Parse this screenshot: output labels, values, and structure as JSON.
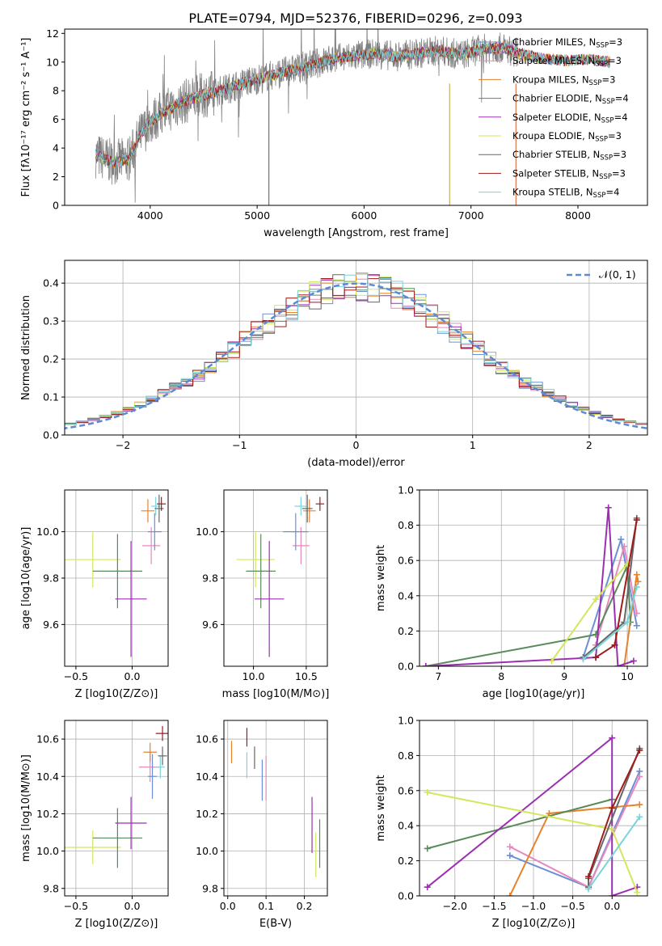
{
  "figure": {
    "title": "PLATE=0794, MJD=52376, FIBERID=0296, z=0.093"
  },
  "colors": {
    "Chabrier MILES": "#6b8fd6",
    "Salpeter MILES": "#e688bf",
    "Kroupa MILES": "#e6832a",
    "Chabrier ELODIE": "#5a8a5a",
    "Salpeter ELODIE": "#9a30b0",
    "Kroupa ELODIE": "#d2e85a",
    "Chabrier STELIB": "#666666",
    "Salpeter STELIB": "#a01a1a",
    "Kroupa STELIB": "#7ad4dc",
    "data": "#808080",
    "normal": "#5b8ad6"
  },
  "chart_data": [
    {
      "id": "spectrum",
      "type": "line",
      "xlabel": "wavelength [Angstrom, rest frame]",
      "ylabel": "Flux [fλ10⁻¹⁷ erg cm⁻² s⁻¹ A⁻¹]",
      "xlim": [
        3200,
        8650
      ],
      "ylim": [
        0,
        12.3
      ],
      "xticks": [
        4000,
        5000,
        6000,
        7000,
        8000
      ],
      "yticks": [
        0,
        2,
        4,
        6,
        8,
        10,
        12
      ],
      "continuum": {
        "x": [
          3500,
          3650,
          3800,
          3900,
          4000,
          4100,
          4300,
          4500,
          4700,
          4900,
          5100,
          5300,
          5500,
          5700,
          5900,
          6100,
          6300,
          6500,
          6700,
          6900,
          7100,
          7300,
          7500,
          7700,
          7900,
          8100,
          8300
        ],
        "y": [
          3.5,
          3.0,
          3.2,
          4.8,
          5.8,
          6.4,
          7.2,
          7.7,
          8.1,
          8.6,
          9.0,
          9.4,
          9.8,
          10.2,
          10.4,
          10.6,
          10.4,
          10.6,
          10.8,
          10.5,
          10.9,
          11.0,
          10.5,
          10.2,
          10.1,
          10.2,
          10.0
        ]
      },
      "noise_amplitude": 0.9,
      "legend_position": "upper right",
      "legend": [
        {
          "label": "Chabrier MILES, N",
          "sub": "SSP",
          "value": "=3"
        },
        {
          "label": "Salpeter MILES, N",
          "sub": "SSP",
          "value": "=3"
        },
        {
          "label": "Kroupa MILES, N",
          "sub": "SSP",
          "value": "=3"
        },
        {
          "label": "Chabrier ELODIE, N",
          "sub": "SSP",
          "value": "=4"
        },
        {
          "label": "Salpeter ELODIE, N",
          "sub": "SSP",
          "value": "=4"
        },
        {
          "label": "Kroupa ELODIE, N",
          "sub": "SSP",
          "value": "=3"
        },
        {
          "label": "Chabrier STELIB, N",
          "sub": "SSP",
          "value": "=3"
        },
        {
          "label": "Salpeter STELIB, N",
          "sub": "SSP",
          "value": "=3"
        },
        {
          "label": "Kroupa STELIB, N",
          "sub": "SSP",
          "value": "=4"
        }
      ]
    },
    {
      "id": "residuals",
      "type": "bar",
      "xlabel": "(data-model)/error",
      "ylabel": "Normed distribution",
      "xlim": [
        -2.5,
        2.5
      ],
      "ylim": [
        0,
        0.46
      ],
      "xticks": [
        -2,
        -1,
        0,
        1,
        2
      ],
      "yticks": [
        0.0,
        0.1,
        0.2,
        0.3,
        0.4
      ],
      "grid": true,
      "bin_width": 0.1,
      "legend": "𝒩(0, 1)",
      "legend_position": "upper right"
    },
    {
      "id": "z-age",
      "type": "scatter",
      "xlabel": "Z [log10(Z/Z⊙)]",
      "ylabel": "age  [log10(age/yr)]",
      "xlim": [
        -0.6,
        0.32
      ],
      "ylim": [
        9.42,
        10.18
      ],
      "xticks": [
        -0.5,
        0.0
      ],
      "yticks": [
        9.6,
        9.8,
        10.0
      ],
      "grid": true,
      "points": [
        {
          "model": "Kroupa ELODIE",
          "x": -0.35,
          "y": 9.88,
          "xerr": 0.25,
          "yerr": 0.12
        },
        {
          "model": "Chabrier ELODIE",
          "x": -0.13,
          "y": 9.83,
          "xerr": 0.22,
          "yerr": 0.16
        },
        {
          "model": "Salpeter ELODIE",
          "x": -0.01,
          "y": 9.71,
          "xerr": 0.14,
          "yerr": 0.25
        },
        {
          "model": "Salpeter MILES",
          "x": 0.17,
          "y": 9.94,
          "xerr": 0.08,
          "yerr": 0.08
        },
        {
          "model": "Chabrier MILES",
          "x": 0.2,
          "y": 10.0,
          "xerr": 0.06,
          "yerr": 0.08
        },
        {
          "model": "Kroupa MILES",
          "x": 0.14,
          "y": 10.09,
          "xerr": 0.06,
          "yerr": 0.05
        },
        {
          "model": "Kroupa STELIB",
          "x": 0.21,
          "y": 10.11,
          "xerr": 0.04,
          "yerr": 0.04
        },
        {
          "model": "Chabrier STELIB",
          "x": 0.24,
          "y": 10.1,
          "xerr": 0.04,
          "yerr": 0.06
        },
        {
          "model": "Salpeter STELIB",
          "x": 0.26,
          "y": 10.12,
          "xerr": 0.04,
          "yerr": 0.03
        }
      ]
    },
    {
      "id": "mass-age",
      "type": "scatter",
      "xlabel": "mass [log10(M/M⊙)]",
      "ylabel": "",
      "xlim": [
        9.72,
        10.7
      ],
      "ylim": [
        9.42,
        10.18
      ],
      "xticks": [
        10.0,
        10.5
      ],
      "yticks": [
        9.6,
        9.8,
        10.0
      ],
      "grid": true,
      "points": [
        {
          "model": "Kroupa ELODIE",
          "x": 10.02,
          "y": 9.88,
          "xerr": 0.18,
          "yerr": 0.12
        },
        {
          "model": "Chabrier ELODIE",
          "x": 10.07,
          "y": 9.83,
          "xerr": 0.14,
          "yerr": 0.16
        },
        {
          "model": "Salpeter ELODIE",
          "x": 10.15,
          "y": 9.71,
          "xerr": 0.14,
          "yerr": 0.25
        },
        {
          "model": "Salpeter MILES",
          "x": 10.45,
          "y": 9.94,
          "xerr": 0.08,
          "yerr": 0.08
        },
        {
          "model": "Chabrier MILES",
          "x": 10.4,
          "y": 10.0,
          "xerr": 0.12,
          "yerr": 0.08
        },
        {
          "model": "Kroupa MILES",
          "x": 10.53,
          "y": 10.09,
          "xerr": 0.06,
          "yerr": 0.05
        },
        {
          "model": "Kroupa STELIB",
          "x": 10.45,
          "y": 10.11,
          "xerr": 0.06,
          "yerr": 0.04
        },
        {
          "model": "Chabrier STELIB",
          "x": 10.51,
          "y": 10.1,
          "xerr": 0.05,
          "yerr": 0.06
        },
        {
          "model": "Salpeter STELIB",
          "x": 10.63,
          "y": 10.12,
          "xerr": 0.04,
          "yerr": 0.03
        }
      ]
    },
    {
      "id": "age-weight",
      "type": "line",
      "xlabel": "age  [log10(age/yr)]",
      "ylabel": "mass weight",
      "xlim": [
        6.7,
        10.32
      ],
      "ylim": [
        0,
        1.0
      ],
      "xticks": [
        7,
        8,
        9,
        10
      ],
      "yticks": [
        0.0,
        0.2,
        0.4,
        0.6,
        0.8,
        1.0
      ],
      "grid": true,
      "series": [
        {
          "model": "Chabrier MILES",
          "x": [
            9.3,
            9.9,
            10.15
          ],
          "y": [
            0.05,
            0.72,
            0.23
          ]
        },
        {
          "model": "Salpeter MILES",
          "x": [
            9.5,
            9.95,
            10.15
          ],
          "y": [
            0.12,
            0.68,
            0.3
          ]
        },
        {
          "model": "Kroupa MILES",
          "x": [
            9.95,
            10.15,
            10.17
          ],
          "y": [
            0.0,
            0.52,
            0.48
          ]
        },
        {
          "model": "Chabrier ELODIE",
          "x": [
            6.8,
            9.5,
            10.0,
            10.05
          ],
          "y": [
            0.0,
            0.18,
            0.57,
            0.25
          ]
        },
        {
          "model": "Salpeter ELODIE",
          "x": [
            6.8,
            9.5,
            9.7,
            9.85,
            10.1
          ],
          "y": [
            0.0,
            0.05,
            0.9,
            0.0,
            0.03
          ]
        },
        {
          "model": "Kroupa ELODIE",
          "x": [
            8.8,
            9.5,
            10.0
          ],
          "y": [
            0.03,
            0.38,
            0.58
          ]
        },
        {
          "model": "Chabrier STELIB",
          "x": [
            9.3,
            9.95,
            10.15
          ],
          "y": [
            0.05,
            0.25,
            0.84
          ]
        },
        {
          "model": "Salpeter STELIB",
          "x": [
            9.5,
            9.8,
            10.15
          ],
          "y": [
            0.05,
            0.12,
            0.83
          ]
        },
        {
          "model": "Kroupa STELIB",
          "x": [
            9.3,
            10.0,
            10.15
          ],
          "y": [
            0.04,
            0.25,
            0.45
          ]
        }
      ]
    },
    {
      "id": "z-mass",
      "type": "scatter",
      "xlabel": "Z [log10(Z/Z⊙)]",
      "ylabel": "mass [log10(M/M⊙)]",
      "xlim": [
        -0.6,
        0.32
      ],
      "ylim": [
        9.76,
        10.7
      ],
      "xticks": [
        -0.5,
        0.0
      ],
      "yticks": [
        9.8,
        10.0,
        10.2,
        10.4,
        10.6
      ],
      "grid": true,
      "points": [
        {
          "model": "Kroupa ELODIE",
          "x": -0.35,
          "y": 10.02,
          "xerr": 0.25,
          "yerr": 0.09
        },
        {
          "model": "Chabrier ELODIE",
          "x": -0.13,
          "y": 10.07,
          "xerr": 0.22,
          "yerr": 0.16
        },
        {
          "model": "Salpeter ELODIE",
          "x": -0.01,
          "y": 10.15,
          "xerr": 0.14,
          "yerr": 0.14
        },
        {
          "model": "Salpeter MILES",
          "x": 0.16,
          "y": 10.45,
          "xerr": 0.1,
          "yerr": 0.08
        },
        {
          "model": "Chabrier MILES",
          "x": 0.18,
          "y": 10.4,
          "xerr": 0.04,
          "yerr": 0.12
        },
        {
          "model": "Kroupa MILES",
          "x": 0.16,
          "y": 10.53,
          "xerr": 0.06,
          "yerr": 0.05
        },
        {
          "model": "Kroupa STELIB",
          "x": 0.25,
          "y": 10.45,
          "xerr": 0.04,
          "yerr": 0.06
        },
        {
          "model": "Chabrier STELIB",
          "x": 0.27,
          "y": 10.51,
          "xerr": 0.04,
          "yerr": 0.05
        },
        {
          "model": "Salpeter STELIB",
          "x": 0.27,
          "y": 10.63,
          "xerr": 0.06,
          "yerr": 0.04
        }
      ]
    },
    {
      "id": "ebv-mass",
      "type": "scatter",
      "xlabel": "E(B-V)",
      "ylabel": "",
      "xlim": [
        -0.01,
        0.26
      ],
      "ylim": [
        9.76,
        10.7
      ],
      "xticks": [
        0.0,
        0.1,
        0.2
      ],
      "yticks": [
        9.8,
        10.0,
        10.2,
        10.4,
        10.6
      ],
      "grid": true,
      "points": [
        {
          "model": "Kroupa MILES",
          "x": 0.01,
          "y": 10.53,
          "xerr": 0.0,
          "yerr": 0.06
        },
        {
          "model": "Salpeter STELIB",
          "x": 0.05,
          "y": 10.61,
          "xerr": 0.0,
          "yerr": 0.05
        },
        {
          "model": "Kroupa STELIB",
          "x": 0.05,
          "y": 10.46,
          "xerr": 0.0,
          "yerr": 0.07
        },
        {
          "model": "Chabrier STELIB",
          "x": 0.07,
          "y": 10.5,
          "xerr": 0.0,
          "yerr": 0.06
        },
        {
          "model": "Chabrier MILES",
          "x": 0.09,
          "y": 10.38,
          "xerr": 0.0,
          "yerr": 0.11
        },
        {
          "model": "Salpeter MILES",
          "x": 0.1,
          "y": 10.39,
          "xerr": 0.0,
          "yerr": 0.12
        },
        {
          "model": "Salpeter ELODIE",
          "x": 0.22,
          "y": 10.14,
          "xerr": 0.0,
          "yerr": 0.15
        },
        {
          "model": "Kroupa ELODIE",
          "x": 0.23,
          "y": 9.98,
          "xerr": 0.0,
          "yerr": 0.12
        },
        {
          "model": "Chabrier ELODIE",
          "x": 0.24,
          "y": 10.04,
          "xerr": 0.0,
          "yerr": 0.13
        }
      ]
    },
    {
      "id": "z-weight",
      "type": "line",
      "xlabel": "Z [log10(Z/Z⊙)]",
      "ylabel": "mass weight",
      "xlim": [
        -2.45,
        0.45
      ],
      "ylim": [
        0,
        1.0
      ],
      "xticks": [
        -2.0,
        -1.5,
        -1.0,
        -0.5,
        0.0
      ],
      "yticks": [
        0.0,
        0.2,
        0.4,
        0.6,
        0.8,
        1.0
      ],
      "grid": true,
      "series": [
        {
          "model": "Chabrier MILES",
          "x": [
            -1.3,
            -0.3,
            0.35
          ],
          "y": [
            0.23,
            0.05,
            0.71
          ]
        },
        {
          "model": "Salpeter MILES",
          "x": [
            -1.3,
            -0.3,
            0.35
          ],
          "y": [
            0.28,
            0.05,
            0.68
          ]
        },
        {
          "model": "Kroupa MILES",
          "x": [
            -1.3,
            -0.8,
            0.35
          ],
          "y": [
            0.0,
            0.47,
            0.52
          ]
        },
        {
          "model": "Chabrier ELODIE",
          "x": [
            -2.35,
            0.0
          ],
          "y": [
            0.27,
            0.55
          ]
        },
        {
          "model": "Salpeter ELODIE",
          "x": [
            -2.35,
            0.0,
            0.0,
            0.32
          ],
          "y": [
            0.05,
            0.9,
            0.0,
            0.05
          ]
        },
        {
          "model": "Kroupa ELODIE",
          "x": [
            -2.35,
            0.0,
            0.32
          ],
          "y": [
            0.59,
            0.38,
            0.02
          ]
        },
        {
          "model": "Chabrier STELIB",
          "x": [
            -0.3,
            -0.3,
            0.35
          ],
          "y": [
            0.05,
            0.1,
            0.84
          ]
        },
        {
          "model": "Salpeter STELIB",
          "x": [
            -0.3,
            0.0,
            0.35
          ],
          "y": [
            0.11,
            0.5,
            0.83
          ]
        },
        {
          "model": "Kroupa STELIB",
          "x": [
            -0.3,
            0.35
          ],
          "y": [
            0.04,
            0.45
          ]
        }
      ]
    }
  ]
}
